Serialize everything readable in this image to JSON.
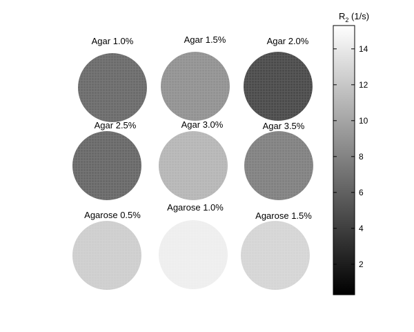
{
  "chart_data": {
    "type": "heatmap",
    "colorbar": {
      "label_main": "R",
      "label_sub": "2",
      "label_unit": " (1/s)",
      "range": [
        0.3,
        15.3
      ],
      "ticks": [
        2,
        4,
        6,
        8,
        10,
        12,
        14
      ],
      "colormap": "gray"
    },
    "samples": [
      {
        "label": "Agar 1.0%",
        "value": 6.6
      },
      {
        "label": "Agar 1.5%",
        "value": 8.9
      },
      {
        "label": "Agar 2.0%",
        "value": 4.7
      },
      {
        "label": "Agar 2.5%",
        "value": 6.4
      },
      {
        "label": "Agar 3.0%",
        "value": 11.0
      },
      {
        "label": "Agar 3.5%",
        "value": 7.9
      },
      {
        "label": "Agarose 0.5%",
        "value": 12.4
      },
      {
        "label": "Agarose 1.0%",
        "value": 14.3
      },
      {
        "label": "Agarose 1.5%",
        "value": 12.8
      }
    ]
  }
}
